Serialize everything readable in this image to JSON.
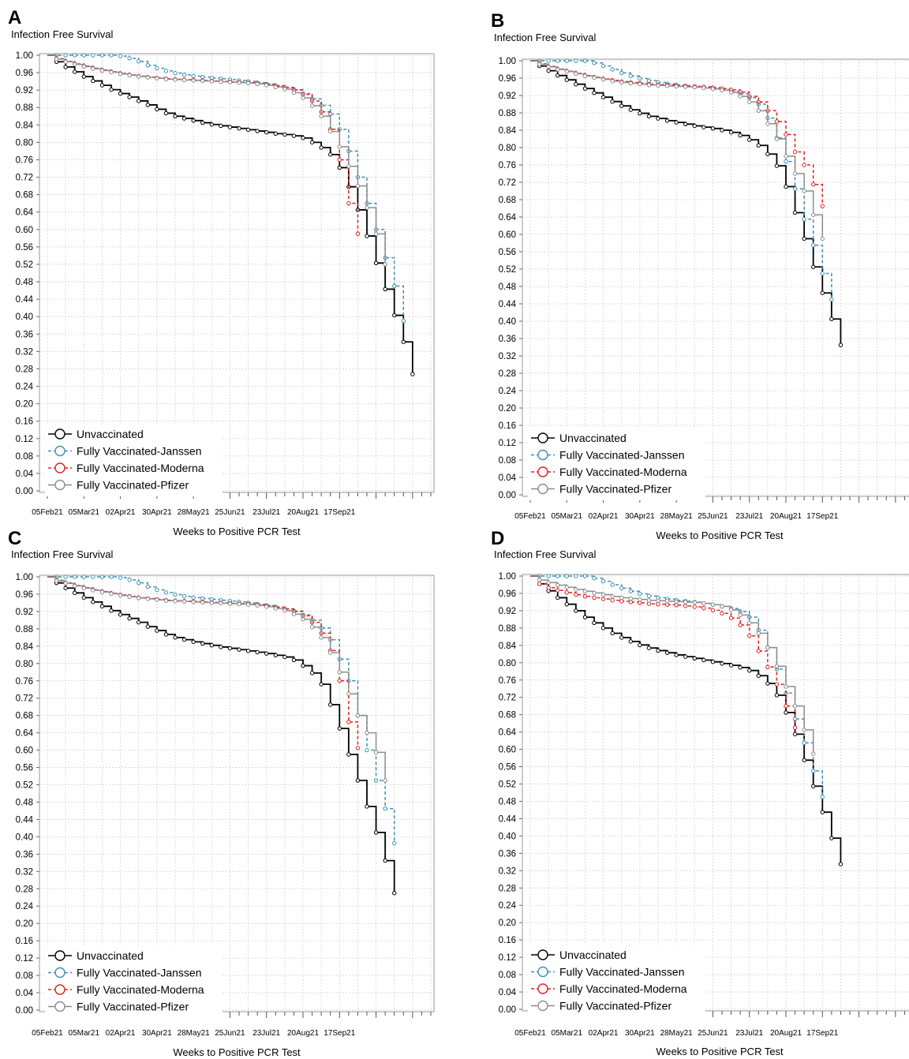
{
  "figure": {
    "panels": [
      "A",
      "B",
      "C",
      "D"
    ]
  },
  "chart_data": [
    {
      "panel": "A",
      "type": "line",
      "step": true,
      "ylabel": "Infection Free Survival",
      "xlabel": "Weeks to Positive PCR Test",
      "ylim": [
        0,
        1
      ],
      "yticks": [
        "0.00",
        "0.04",
        "0.08",
        "0.12",
        "0.16",
        "0.20",
        "0.24",
        "0.28",
        "0.32",
        "0.36",
        "0.40",
        "0.44",
        "0.48",
        "0.52",
        "0.56",
        "0.60",
        "0.64",
        "0.68",
        "0.72",
        "0.76",
        "0.80",
        "0.84",
        "0.88",
        "0.92",
        "0.96",
        "1.00"
      ],
      "xticks": [
        "05Feb21",
        "05Mar21",
        "02Apr21",
        "30Apr21",
        "28May21",
        "25Jun21",
        "23Jul21",
        "20Aug21",
        "17Sep21"
      ],
      "x_weeks": [
        0,
        1,
        2,
        3,
        4,
        5,
        6,
        7,
        8,
        9,
        10,
        11,
        12,
        13,
        14,
        15,
        16,
        17,
        18,
        19,
        20,
        21,
        22,
        23,
        24,
        25,
        26,
        27,
        28,
        29,
        30,
        31,
        32,
        33,
        34,
        35,
        36,
        37,
        38,
        39,
        40,
        41,
        42
      ],
      "grid": true,
      "legend_position": "bottom-left",
      "series": [
        {
          "name": "Unvaccinated",
          "color": "#000000",
          "dash": "solid",
          "values": [
            1.0,
            0.985,
            0.973,
            0.962,
            0.951,
            0.941,
            0.931,
            0.921,
            0.912,
            0.904,
            0.895,
            0.886,
            0.876,
            0.867,
            0.86,
            0.855,
            0.85,
            0.845,
            0.841,
            0.838,
            0.835,
            0.832,
            0.829,
            0.826,
            0.823,
            0.82,
            0.818,
            0.815,
            0.81,
            0.8,
            0.788,
            0.772,
            0.742,
            0.698,
            0.645,
            0.585,
            0.523,
            0.463,
            0.403,
            0.342,
            0.268
          ]
        },
        {
          "name": "Fully Vaccinated-Janssen",
          "color": "#3f8fb5",
          "dash": "dashed",
          "values": [
            1.0,
            1.0,
            1.0,
            1.0,
            1.0,
            1.0,
            1.0,
            1.0,
            0.998,
            0.993,
            0.986,
            0.977,
            0.97,
            0.964,
            0.959,
            0.955,
            0.952,
            0.95,
            0.948,
            0.946,
            0.944,
            0.942,
            0.94,
            0.937,
            0.934,
            0.93,
            0.926,
            0.921,
            0.912,
            0.9,
            0.885,
            0.865,
            0.83,
            0.78,
            0.72,
            0.66,
            0.6,
            0.535,
            0.47,
            0.39
          ]
        },
        {
          "name": "Fully Vaccinated-Moderna",
          "color": "#e02020",
          "dash": "dashed",
          "values": [
            1.0,
            0.992,
            0.986,
            0.98,
            0.975,
            0.97,
            0.966,
            0.962,
            0.958,
            0.955,
            0.952,
            0.95,
            0.948,
            0.946,
            0.945,
            0.944,
            0.943,
            0.942,
            0.941,
            0.94,
            0.939,
            0.938,
            0.937,
            0.935,
            0.933,
            0.93,
            0.926,
            0.92,
            0.91,
            0.895,
            0.87,
            0.83,
            0.76,
            0.66,
            0.59
          ]
        },
        {
          "name": "Fully Vaccinated-Pfizer",
          "color": "#8c8c8c",
          "dash": "solid",
          "values": [
            1.0,
            0.991,
            0.985,
            0.979,
            0.974,
            0.969,
            0.965,
            0.961,
            0.957,
            0.954,
            0.951,
            0.949,
            0.947,
            0.945,
            0.944,
            0.943,
            0.942,
            0.941,
            0.94,
            0.939,
            0.938,
            0.937,
            0.936,
            0.934,
            0.931,
            0.927,
            0.922,
            0.914,
            0.902,
            0.884,
            0.86,
            0.825,
            0.79,
            0.745,
            0.7,
            0.65,
            0.59,
            0.52
          ]
        }
      ]
    },
    {
      "panel": "B",
      "type": "line",
      "step": true,
      "ylabel": "Infection Free Survival",
      "xlabel": "Weeks to Positive PCR Test",
      "ylim": [
        0,
        1
      ],
      "yticks": [
        "0.00",
        "0.04",
        "0.08",
        "0.12",
        "0.16",
        "0.20",
        "0.24",
        "0.28",
        "0.32",
        "0.36",
        "0.40",
        "0.44",
        "0.48",
        "0.52",
        "0.56",
        "0.60",
        "0.64",
        "0.68",
        "0.72",
        "0.76",
        "0.80",
        "0.84",
        "0.88",
        "0.92",
        "0.96",
        "1.00"
      ],
      "xticks": [
        "05Feb21",
        "05Mar21",
        "02Apr21",
        "30Apr21",
        "28May21",
        "25Jun21",
        "23Jul21",
        "20Aug21",
        "17Sep21"
      ],
      "grid": true,
      "legend_position": "bottom-left",
      "series": [
        {
          "name": "Unvaccinated",
          "color": "#000000",
          "dash": "solid",
          "values": [
            1.0,
            0.988,
            0.977,
            0.966,
            0.956,
            0.946,
            0.936,
            0.926,
            0.916,
            0.906,
            0.896,
            0.887,
            0.879,
            0.872,
            0.867,
            0.862,
            0.858,
            0.854,
            0.85,
            0.847,
            0.844,
            0.84,
            0.835,
            0.828,
            0.818,
            0.805,
            0.785,
            0.758,
            0.71,
            0.65,
            0.59,
            0.525,
            0.465,
            0.405,
            0.345
          ]
        },
        {
          "name": "Fully Vaccinated-Janssen",
          "color": "#3f8fb5",
          "dash": "dashed",
          "values": [
            1.0,
            1.0,
            1.0,
            1.0,
            1.0,
            1.0,
            1.0,
            0.995,
            0.988,
            0.98,
            0.972,
            0.965,
            0.959,
            0.954,
            0.95,
            0.947,
            0.944,
            0.942,
            0.94,
            0.938,
            0.936,
            0.933,
            0.929,
            0.924,
            0.915,
            0.9,
            0.868,
            0.822,
            0.768,
            0.705,
            0.635,
            0.575,
            0.51,
            0.45
          ]
        },
        {
          "name": "Fully Vaccinated-Moderna",
          "color": "#e02020",
          "dash": "dashed",
          "values": [
            1.0,
            0.993,
            0.987,
            0.981,
            0.976,
            0.971,
            0.966,
            0.962,
            0.958,
            0.955,
            0.952,
            0.95,
            0.948,
            0.946,
            0.945,
            0.944,
            0.943,
            0.942,
            0.941,
            0.94,
            0.938,
            0.936,
            0.933,
            0.928,
            0.918,
            0.905,
            0.885,
            0.86,
            0.83,
            0.79,
            0.76,
            0.715,
            0.665
          ]
        },
        {
          "name": "Fully Vaccinated-Pfizer",
          "color": "#8c8c8c",
          "dash": "solid",
          "values": [
            1.0,
            0.992,
            0.986,
            0.98,
            0.975,
            0.97,
            0.965,
            0.961,
            0.957,
            0.953,
            0.95,
            0.948,
            0.946,
            0.944,
            0.943,
            0.942,
            0.941,
            0.94,
            0.939,
            0.937,
            0.935,
            0.932,
            0.927,
            0.918,
            0.905,
            0.885,
            0.855,
            0.82,
            0.78,
            0.74,
            0.7,
            0.645,
            0.59
          ]
        }
      ]
    },
    {
      "panel": "C",
      "type": "line",
      "step": true,
      "ylabel": "Infection Free Survival",
      "xlabel": "Weeks to Positive PCR Test",
      "ylim": [
        0,
        1
      ],
      "yticks": [
        "0.00",
        "0.04",
        "0.08",
        "0.12",
        "0.16",
        "0.20",
        "0.24",
        "0.28",
        "0.32",
        "0.36",
        "0.40",
        "0.44",
        "0.48",
        "0.52",
        "0.56",
        "0.60",
        "0.64",
        "0.68",
        "0.72",
        "0.76",
        "0.80",
        "0.84",
        "0.88",
        "0.92",
        "0.96",
        "1.00"
      ],
      "xticks": [
        "05Feb21",
        "05Mar21",
        "02Apr21",
        "30Apr21",
        "28May21",
        "25Jun21",
        "23Jul21",
        "20Aug21",
        "17Sep21"
      ],
      "grid": true,
      "legend_position": "bottom-left",
      "series": [
        {
          "name": "Unvaccinated",
          "color": "#000000",
          "dash": "solid",
          "values": [
            1.0,
            0.986,
            0.974,
            0.963,
            0.952,
            0.942,
            0.932,
            0.922,
            0.913,
            0.904,
            0.895,
            0.885,
            0.876,
            0.867,
            0.86,
            0.855,
            0.85,
            0.846,
            0.842,
            0.838,
            0.835,
            0.832,
            0.829,
            0.826,
            0.823,
            0.819,
            0.815,
            0.808,
            0.795,
            0.778,
            0.752,
            0.705,
            0.65,
            0.59,
            0.53,
            0.47,
            0.41,
            0.345,
            0.27
          ]
        },
        {
          "name": "Fully Vaccinated-Janssen",
          "color": "#3f8fb5",
          "dash": "dashed",
          "values": [
            1.0,
            1.0,
            1.0,
            1.0,
            1.0,
            1.0,
            1.0,
            1.0,
            0.998,
            0.993,
            0.986,
            0.977,
            0.97,
            0.964,
            0.959,
            0.955,
            0.952,
            0.95,
            0.948,
            0.946,
            0.944,
            0.942,
            0.94,
            0.937,
            0.934,
            0.93,
            0.926,
            0.921,
            0.912,
            0.9,
            0.882,
            0.855,
            0.81,
            0.76,
            0.68,
            0.6,
            0.53,
            0.465,
            0.385
          ]
        },
        {
          "name": "Fully Vaccinated-Moderna",
          "color": "#e02020",
          "dash": "dashed",
          "values": [
            1.0,
            0.992,
            0.986,
            0.98,
            0.975,
            0.97,
            0.966,
            0.962,
            0.958,
            0.955,
            0.952,
            0.95,
            0.948,
            0.946,
            0.945,
            0.944,
            0.943,
            0.942,
            0.941,
            0.94,
            0.939,
            0.938,
            0.937,
            0.935,
            0.933,
            0.93,
            0.926,
            0.92,
            0.91,
            0.895,
            0.87,
            0.83,
            0.76,
            0.665,
            0.605
          ]
        },
        {
          "name": "Fully Vaccinated-Pfizer",
          "color": "#8c8c8c",
          "dash": "solid",
          "values": [
            1.0,
            0.991,
            0.985,
            0.979,
            0.974,
            0.969,
            0.965,
            0.961,
            0.957,
            0.954,
            0.951,
            0.949,
            0.947,
            0.945,
            0.944,
            0.943,
            0.942,
            0.941,
            0.94,
            0.939,
            0.938,
            0.937,
            0.936,
            0.934,
            0.931,
            0.927,
            0.922,
            0.914,
            0.902,
            0.884,
            0.86,
            0.825,
            0.78,
            0.73,
            0.68,
            0.64,
            0.595,
            0.53
          ]
        }
      ]
    },
    {
      "panel": "D",
      "type": "line",
      "step": true,
      "ylabel": "Infection Free Survival",
      "xlabel": "Weeks to Positive PCR Test",
      "ylim": [
        0,
        1
      ],
      "yticks": [
        "0.00",
        "0.04",
        "0.08",
        "0.12",
        "0.16",
        "0.20",
        "0.24",
        "0.28",
        "0.32",
        "0.36",
        "0.40",
        "0.44",
        "0.48",
        "0.52",
        "0.56",
        "0.60",
        "0.64",
        "0.68",
        "0.72",
        "0.76",
        "0.80",
        "0.84",
        "0.88",
        "0.92",
        "0.96",
        "1.00"
      ],
      "xticks": [
        "05Feb21",
        "05Mar21",
        "02Apr21",
        "30Apr21",
        "28May21",
        "25Jun21",
        "23Jul21",
        "20Aug21",
        "17Sep21"
      ],
      "grid": true,
      "legend_position": "bottom-left",
      "series": [
        {
          "name": "Unvaccinated",
          "color": "#000000",
          "dash": "solid",
          "values": [
            1.0,
            0.982,
            0.966,
            0.95,
            0.935,
            0.92,
            0.905,
            0.892,
            0.88,
            0.868,
            0.858,
            0.849,
            0.841,
            0.834,
            0.828,
            0.823,
            0.818,
            0.814,
            0.81,
            0.806,
            0.802,
            0.798,
            0.794,
            0.789,
            0.782,
            0.77,
            0.752,
            0.725,
            0.685,
            0.635,
            0.575,
            0.515,
            0.455,
            0.395,
            0.335
          ]
        },
        {
          "name": "Fully Vaccinated-Janssen",
          "color": "#3f8fb5",
          "dash": "dashed",
          "values": [
            1.0,
            1.0,
            1.0,
            1.0,
            1.0,
            1.0,
            1.0,
            0.995,
            0.988,
            0.98,
            0.972,
            0.965,
            0.959,
            0.954,
            0.95,
            0.947,
            0.944,
            0.942,
            0.94,
            0.937,
            0.934,
            0.93,
            0.925,
            0.918,
            0.905,
            0.875,
            0.835,
            0.785,
            0.73,
            0.67,
            0.615,
            0.55,
            0.49
          ]
        },
        {
          "name": "Fully Vaccinated-Moderna",
          "color": "#e02020",
          "dash": "dashed",
          "values": [
            1.0,
            0.982,
            0.973,
            0.967,
            0.962,
            0.957,
            0.953,
            0.95,
            0.947,
            0.944,
            0.942,
            0.94,
            0.938,
            0.936,
            0.935,
            0.934,
            0.933,
            0.931,
            0.929,
            0.926,
            0.921,
            0.914,
            0.903,
            0.887,
            0.862,
            0.827,
            0.79,
            0.75,
            0.7,
            0.65
          ]
        },
        {
          "name": "Fully Vaccinated-Pfizer",
          "color": "#8c8c8c",
          "dash": "solid",
          "values": [
            1.0,
            0.991,
            0.985,
            0.979,
            0.974,
            0.969,
            0.965,
            0.961,
            0.957,
            0.953,
            0.95,
            0.948,
            0.946,
            0.944,
            0.943,
            0.942,
            0.941,
            0.94,
            0.939,
            0.937,
            0.934,
            0.93,
            0.922,
            0.91,
            0.892,
            0.868,
            0.835,
            0.792,
            0.745,
            0.7,
            0.645,
            0.59
          ]
        }
      ]
    }
  ]
}
